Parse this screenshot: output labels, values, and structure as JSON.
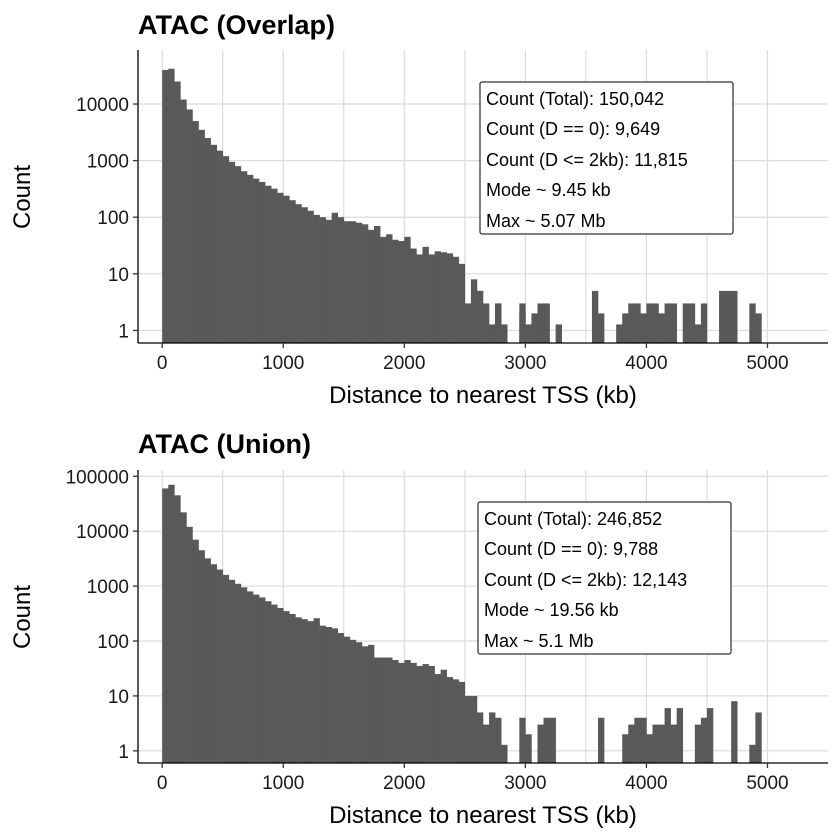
{
  "chart_data": [
    {
      "type": "bar",
      "title": "ATAC (Overlap)",
      "xlabel": "Distance to nearest TSS (kb)",
      "ylabel": "Count",
      "y_scale": "log10",
      "xlim": [
        -200,
        5500
      ],
      "ylim": [
        0.6,
        90000
      ],
      "x_ticks": [
        0,
        1000,
        2000,
        3000,
        4000,
        5000
      ],
      "x_tick_labels": [
        "0",
        "1000",
        "2000",
        "3000",
        "4000",
        "5000"
      ],
      "y_ticks": [
        1,
        10,
        100,
        1000,
        10000
      ],
      "y_tick_labels": [
        "1",
        "10",
        "100",
        "1000",
        "10000"
      ],
      "grid": true,
      "bin_width_kb": 50,
      "bin_starts_kb": [
        0,
        50,
        100,
        150,
        200,
        250,
        300,
        350,
        400,
        450,
        500,
        550,
        600,
        650,
        700,
        750,
        800,
        850,
        900,
        950,
        1000,
        1050,
        1100,
        1150,
        1200,
        1250,
        1300,
        1350,
        1400,
        1450,
        1500,
        1550,
        1600,
        1650,
        1700,
        1750,
        1800,
        1850,
        1900,
        1950,
        2000,
        2050,
        2100,
        2150,
        2200,
        2250,
        2300,
        2350,
        2400,
        2450,
        2500,
        2550,
        2600,
        2650,
        2700,
        2750,
        2800,
        2850,
        2900,
        2950,
        3000,
        3050,
        3100,
        3150,
        3200,
        3250,
        3300,
        3350,
        3400,
        3450,
        3500,
        3550,
        3600,
        3650,
        3700,
        3750,
        3800,
        3850,
        3900,
        3950,
        4000,
        4050,
        4100,
        4150,
        4200,
        4250,
        4300,
        4350,
        4400,
        4450,
        4500,
        4550,
        4600,
        4650,
        4700,
        4750,
        4800,
        4850,
        4900,
        4950,
        5000,
        5050
      ],
      "values": [
        40000,
        42000,
        25000,
        12000,
        8000,
        5000,
        3500,
        2500,
        1900,
        1500,
        1200,
        950,
        800,
        650,
        560,
        480,
        420,
        360,
        320,
        270,
        240,
        200,
        170,
        150,
        130,
        110,
        100,
        90,
        120,
        100,
        85,
        85,
        80,
        75,
        60,
        70,
        45,
        50,
        40,
        38,
        45,
        28,
        22,
        30,
        22,
        25,
        24,
        23,
        20,
        15,
        3,
        8,
        5,
        3,
        1,
        3,
        0,
        0,
        0,
        3,
        1,
        0,
        0,
        0,
        0,
        1,
        0,
        0,
        0,
        0,
        0,
        0,
        0,
        0,
        0,
        0,
        0,
        0,
        0,
        0,
        0,
        0,
        0,
        0,
        0,
        0,
        0,
        0,
        0,
        0,
        0,
        0,
        0,
        0,
        0,
        0,
        0,
        0,
        0,
        0,
        0,
        0
      ],
      "sparse_tail": [
        [
          2750,
          3
        ],
        [
          2800,
          1
        ],
        [
          2950,
          2
        ],
        [
          3050,
          2
        ],
        [
          3100,
          3
        ],
        [
          3150,
          3
        ],
        [
          3550,
          5
        ],
        [
          3600,
          2
        ],
        [
          3750,
          1
        ],
        [
          3800,
          2
        ],
        [
          3850,
          3
        ],
        [
          3900,
          3
        ],
        [
          3950,
          2
        ],
        [
          4000,
          3
        ],
        [
          4050,
          3
        ],
        [
          4100,
          2
        ],
        [
          4150,
          3
        ],
        [
          4200,
          3
        ],
        [
          4300,
          3
        ],
        [
          4350,
          3
        ],
        [
          4400,
          1
        ],
        [
          4450,
          3
        ],
        [
          4600,
          5
        ],
        [
          4650,
          5
        ],
        [
          4700,
          5
        ],
        [
          4850,
          3
        ],
        [
          4900,
          2
        ]
      ],
      "stats": [
        "Count (Total): 150,042",
        "Count (D == 0): 9,649",
        "Count (D <= 2kb): 11,815",
        "Mode ~ 9.45 kb",
        "Max ~ 5.07 Mb"
      ]
    },
    {
      "type": "bar",
      "title": "ATAC (Union)",
      "xlabel": "Distance to nearest TSS (kb)",
      "ylabel": "Count",
      "y_scale": "log10",
      "xlim": [
        -200,
        5500
      ],
      "ylim": [
        0.6,
        130000
      ],
      "x_ticks": [
        0,
        1000,
        2000,
        3000,
        4000,
        5000
      ],
      "x_tick_labels": [
        "0",
        "1000",
        "2000",
        "3000",
        "4000",
        "5000"
      ],
      "y_ticks": [
        1,
        10,
        100,
        1000,
        10000,
        100000
      ],
      "y_tick_labels": [
        "1",
        "10",
        "100",
        "1000",
        "10000",
        "100000"
      ],
      "grid": true,
      "bin_width_kb": 50,
      "bin_starts_kb": [
        0,
        50,
        100,
        150,
        200,
        250,
        300,
        350,
        400,
        450,
        500,
        550,
        600,
        650,
        700,
        750,
        800,
        850,
        900,
        950,
        1000,
        1050,
        1100,
        1150,
        1200,
        1250,
        1300,
        1350,
        1400,
        1450,
        1500,
        1550,
        1600,
        1650,
        1700,
        1750,
        1800,
        1850,
        1900,
        1950,
        2000,
        2050,
        2100,
        2150,
        2200,
        2250,
        2300,
        2350,
        2400,
        2450,
        2500,
        2550,
        2600,
        2650,
        2700,
        2750,
        2800
      ],
      "values": [
        60000,
        70000,
        45000,
        22000,
        12000,
        7000,
        4500,
        3200,
        2500,
        2000,
        1600,
        1300,
        1100,
        950,
        800,
        700,
        620,
        530,
        460,
        400,
        350,
        310,
        270,
        250,
        230,
        260,
        190,
        180,
        170,
        140,
        120,
        105,
        95,
        80,
        85,
        50,
        50,
        50,
        45,
        40,
        45,
        40,
        35,
        38,
        35,
        25,
        30,
        22,
        20,
        18,
        10,
        10,
        5,
        3,
        5,
        4,
        1
      ],
      "sparse_tail": [
        [
          2950,
          4
        ],
        [
          3000,
          2
        ],
        [
          3100,
          3
        ],
        [
          3150,
          4
        ],
        [
          3200,
          4
        ],
        [
          3600,
          4
        ],
        [
          3800,
          2
        ],
        [
          3850,
          3
        ],
        [
          3900,
          4
        ],
        [
          3950,
          4
        ],
        [
          4000,
          2
        ],
        [
          4050,
          3
        ],
        [
          4100,
          3
        ],
        [
          4150,
          6
        ],
        [
          4200,
          3
        ],
        [
          4250,
          6
        ],
        [
          4400,
          3
        ],
        [
          4450,
          4
        ],
        [
          4500,
          6
        ],
        [
          4700,
          8
        ],
        [
          4850,
          1
        ],
        [
          4900,
          5
        ]
      ],
      "stats": [
        "Count (Total): 246,852",
        "Count (D == 0): 9,788",
        "Count (D <= 2kb): 12,143",
        "Mode ~ 19.56 kb",
        "Max ~ 5.1 Mb"
      ]
    }
  ]
}
